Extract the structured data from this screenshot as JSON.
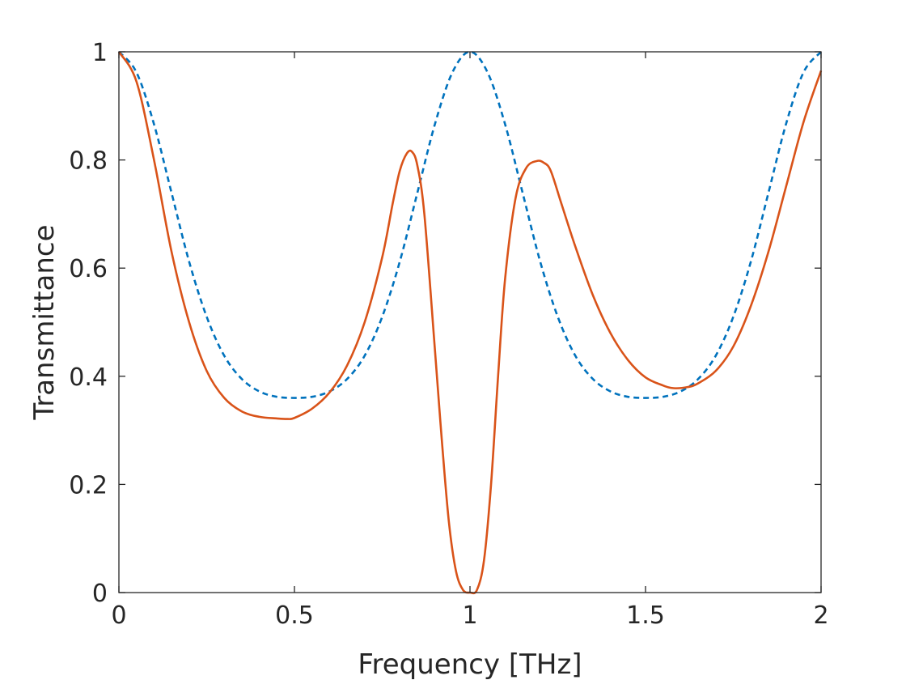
{
  "chart_data": {
    "type": "line",
    "title": "",
    "xlabel": "Frequency [THz]",
    "ylabel": "Transmittance",
    "xlim": [
      0,
      2
    ],
    "ylim": [
      0,
      1
    ],
    "xticks": [
      0,
      0.5,
      1,
      1.5,
      2
    ],
    "xtick_labels": [
      "0",
      "0.5",
      "1",
      "1.5",
      "2"
    ],
    "yticks": [
      0,
      0.2,
      0.4,
      0.6,
      0.8,
      1
    ],
    "ytick_labels": [
      "0",
      "0.2",
      "0.4",
      "0.6",
      "0.8",
      "1"
    ],
    "grid": false,
    "box": true,
    "series": [
      {
        "color": "#0072BD",
        "line_style": "dashed",
        "x": [
          0,
          0.05,
          0.1,
          0.15,
          0.2,
          0.25,
          0.3,
          0.35,
          0.4,
          0.45,
          0.5,
          0.55,
          0.6,
          0.65,
          0.7,
          0.75,
          0.8,
          0.85,
          0.9,
          0.95,
          1.0,
          1.05,
          1.1,
          1.15,
          1.2,
          1.25,
          1.3,
          1.35,
          1.4,
          1.45,
          1.5,
          1.55,
          1.6,
          1.65,
          1.7,
          1.75,
          1.8,
          1.85,
          1.9,
          1.95,
          2.0
        ],
        "y": [
          1.0,
          0.962,
          0.866,
          0.739,
          0.612,
          0.51,
          0.438,
          0.395,
          0.372,
          0.362,
          0.36,
          0.362,
          0.372,
          0.395,
          0.438,
          0.51,
          0.612,
          0.739,
          0.866,
          0.962,
          1.0,
          0.962,
          0.866,
          0.739,
          0.612,
          0.51,
          0.438,
          0.395,
          0.372,
          0.362,
          0.36,
          0.362,
          0.372,
          0.395,
          0.438,
          0.51,
          0.612,
          0.739,
          0.866,
          0.962,
          1.0
        ]
      },
      {
        "color": "#D95319",
        "line_style": "solid",
        "x": [
          0,
          0.05,
          0.1,
          0.15,
          0.2,
          0.25,
          0.3,
          0.35,
          0.4,
          0.45,
          0.48,
          0.5,
          0.55,
          0.6,
          0.65,
          0.7,
          0.75,
          0.78,
          0.8,
          0.82,
          0.835,
          0.85,
          0.87,
          0.9,
          0.92,
          0.94,
          0.96,
          0.98,
          1.0,
          1.02,
          1.04,
          1.06,
          1.08,
          1.1,
          1.13,
          1.16,
          1.19,
          1.21,
          1.23,
          1.26,
          1.3,
          1.35,
          1.4,
          1.45,
          1.5,
          1.55,
          1.58,
          1.62,
          1.65,
          1.7,
          1.75,
          1.8,
          1.85,
          1.9,
          1.95,
          2.0
        ],
        "y": [
          1.0,
          0.945,
          0.8,
          0.63,
          0.5,
          0.41,
          0.36,
          0.335,
          0.325,
          0.322,
          0.321,
          0.323,
          0.34,
          0.37,
          0.42,
          0.5,
          0.62,
          0.72,
          0.78,
          0.812,
          0.815,
          0.79,
          0.7,
          0.45,
          0.28,
          0.13,
          0.04,
          0.005,
          0.0,
          0.005,
          0.06,
          0.2,
          0.4,
          0.58,
          0.73,
          0.785,
          0.798,
          0.795,
          0.78,
          0.72,
          0.64,
          0.55,
          0.48,
          0.43,
          0.398,
          0.383,
          0.378,
          0.38,
          0.387,
          0.41,
          0.455,
          0.53,
          0.63,
          0.75,
          0.87,
          0.965
        ]
      }
    ]
  }
}
